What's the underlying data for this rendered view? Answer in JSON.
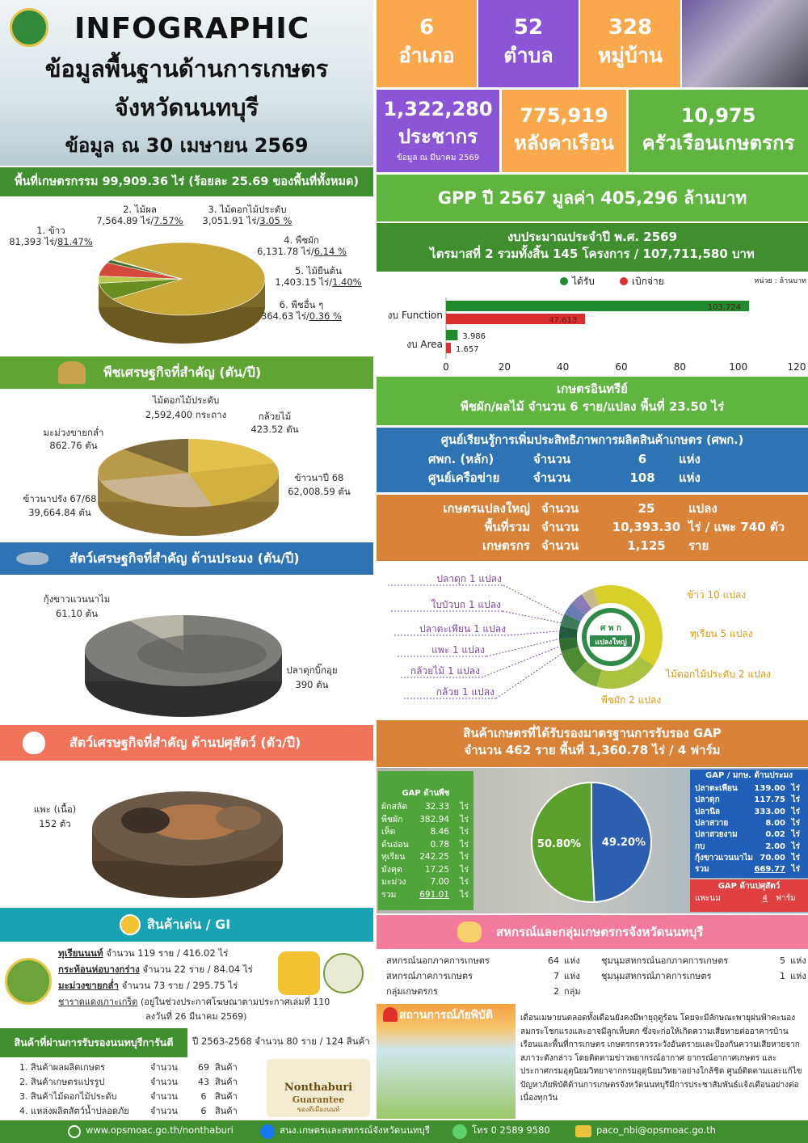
{
  "header": {
    "title": "INFOGRAPHIC",
    "subtitle_1": "ข้อมูลพื้นฐานด้านการเกษตร",
    "subtitle_2": "จังหวัดนนทบุรี",
    "date_line": "ข้อมูล ณ 30 เมษายน 2569"
  },
  "stats": {
    "amphoe": {
      "value": "6",
      "label": "อำเภอ"
    },
    "tambon": {
      "value": "52",
      "label": "ตำบล"
    },
    "village": {
      "value": "328",
      "label": "หมู่บ้าน"
    },
    "population": {
      "value": "1,322,280",
      "label": "ประชากร",
      "note": "ข้อมูล ณ มีนาคม 2569"
    },
    "households": {
      "value": "775,919",
      "label": "หลังคาเรือน"
    },
    "farm_households": {
      "value": "10,975",
      "label": "ครัวเรือนเกษตรกร"
    }
  },
  "agri_area": {
    "heading": "พื้นที่เกษตรกรรม 99,909.36 ไร่ (ร้อยละ 25.69 ของพื้นที่ทั้งหมด)",
    "items": [
      {
        "name": "1. ข้าว",
        "value": "81,393 ไร่/",
        "pct": "81.47%"
      },
      {
        "name": "2. ไม้ผล",
        "value": "7,564.89 ไร่/",
        "pct": "7.57%"
      },
      {
        "name": "3. ไม้ดอกไม้ประดับ",
        "value": "3,051.91 ไร่/",
        "pct": "3.05 %"
      },
      {
        "name": "4. พืชผัก",
        "value": "6,131.78 ไร่/",
        "pct": "6.14 %"
      },
      {
        "name": "5. ไม้ยืนต้น",
        "value": "1,403.15 ไร่/",
        "pct": "1.40%"
      },
      {
        "name": "6. พืชอื่น ๆ",
        "value": "364.63 ไร่/",
        "pct": "0.36 %"
      }
    ],
    "shares": [
      81.47,
      7.57,
      3.05,
      6.14,
      1.4,
      0.36
    ],
    "colors": [
      "#c9a93a",
      "#6b8e23",
      "#b8c84a",
      "#d24a3a",
      "#3f6e2a",
      "#e0b040"
    ]
  },
  "crops": {
    "heading": "พืชเศรษฐกิจที่สำคัญ (ตัน/ปี)",
    "items": [
      {
        "name": "ไม้ดอกไม้ประดับ",
        "value": "2,592,400 กระถาง"
      },
      {
        "name": "กล้วยไม้",
        "value": "423.52 ตัน"
      },
      {
        "name": "มะม่วงขายกล่ำ",
        "value": "862.76 ตัน"
      },
      {
        "name": "ข้าวนาปี 68",
        "value": "62,008.59 ตัน"
      },
      {
        "name": "ข้าวนาปรัง 67/68",
        "value": "39,664.84 ตัน"
      }
    ]
  },
  "fishery": {
    "heading": "สัตว์เศรษฐกิจที่สำคัญ ด้านประมง (ตัน/ปี)",
    "items": [
      {
        "name": "กุ้งขาวแวนนาไม",
        "value": "61.10 ตัน"
      },
      {
        "name": "ปลาดุกบิ๊กอุย",
        "value": "390 ตัน"
      }
    ]
  },
  "livestock": {
    "heading": "สัตว์เศรษฐกิจที่สำคัญ ด้านปศุสัตว์ (ตัว/ปี)",
    "items": [
      {
        "name": "แพะ (เนื้อ)",
        "value": "152 ตัว"
      }
    ]
  },
  "gi": {
    "heading": "สินค้าเด่น / GI",
    "items": [
      {
        "name": "ทุเรียนนนท์",
        "detail": " จำนวน  119 ราย / 416.02 ไร่"
      },
      {
        "name": "กระท้อนห่อบางกร่าง",
        "detail": " จำนวน  22 ราย / 84.04 ไร่"
      },
      {
        "name": "มะม่วงขายกล่ำ",
        "detail": " จำนวน  73 ราย / 295.75 ไร่"
      },
      {
        "name": "ชาราดแดงเกาะเกร็ด",
        "detail": " (อยู่ในช่วงประกาศโฆษณาตามประกาศเล่มที่ 110"
      },
      {
        "name": "",
        "detail": "ลงวันที่ 26 มีนาคม 2569)"
      }
    ]
  },
  "guarantee": {
    "heading": "สินค้าที่ผ่านการรับรองนนทบุรีการันตี",
    "summary": "ปี 2563-2568 จำนวน 80 ราย / 124 สินค้า",
    "items": [
      {
        "name": "1. สินค้าผลผลิตเกษตร",
        "qty": "จำนวน",
        "num": "69",
        "unit": "สินค้า"
      },
      {
        "name": "2. สินค้าเกษตรแปรรูป",
        "qty": "จำนวน",
        "num": "43",
        "unit": "สินค้า"
      },
      {
        "name": "3. สินค้าไม้ดอกไม้ประดับ",
        "qty": "จำนวน",
        "num": "6",
        "unit": "สินค้า"
      },
      {
        "name": "4. แหล่งผลิตสัตว์น้ำปลอดภัย",
        "qty": "จำนวน",
        "num": "6",
        "unit": "สินค้า"
      }
    ],
    "badge_1": "Nonthaburi",
    "badge_2": "Guarantee",
    "badge_3": "ของดีเมืองนนท์"
  },
  "gpp": "GPP ปี 2567 มูลค่า 405,296  ล้านบาท",
  "budget": {
    "line1": "งบประมาณประจำปี พ.ศ. 2569",
    "line2": "ไตรมาสที่ 2  รวมทั้งสิ้น  145 โครงการ / 107,711,580 บาท"
  },
  "chart_data": {
    "type": "bar",
    "orientation": "horizontal",
    "categories": [
      "งบ Function",
      "งบ Area"
    ],
    "series": [
      {
        "name": "ได้รับ",
        "values": [
          103.724,
          3.986
        ],
        "color": "#1f8a2e"
      },
      {
        "name": "เบิกจ่าย",
        "values": [
          47.613,
          1.657
        ],
        "color": "#d9302f"
      }
    ],
    "labels": [
      [
        "103.724",
        "3.986"
      ],
      [
        "47.613",
        "1.657"
      ]
    ],
    "xlim": [
      0,
      120
    ],
    "xticks": [
      "0",
      "20",
      "40",
      "60",
      "80",
      "100",
      "120"
    ],
    "unit_note": "หน่วย : ล้านบาท",
    "legend": "top"
  },
  "organic": {
    "title": "เกษตรอินทรีย์",
    "line": "พืชผัก/ผลไม้   จำนวน  6  ราย/แปลง   พื้นที่  23.50 ไร่"
  },
  "learning": {
    "title": "ศูนย์เรียนรู้การเพิ่มประสิทธิภาพการผลิตสินค้าเกษตร (ศพก.)",
    "rows": [
      [
        "ศพก. (หลัก)",
        "จำนวน",
        "6",
        "แห่ง"
      ],
      [
        "ศูนย์เครือข่าย",
        "จำนวน",
        "108",
        "แห่ง"
      ]
    ]
  },
  "large_plot": {
    "rows": [
      [
        "เกษตรแปลงใหญ่",
        "จำนวน",
        "25",
        "แปลง"
      ],
      [
        "พื้นที่รวม",
        "จำนวน",
        "10,393.30",
        "ไร่ / แพะ 740 ตัว"
      ],
      [
        "เกษตรกร",
        "จำนวน",
        "1,125",
        "ราย"
      ]
    ],
    "donut": {
      "values": [
        10,
        5,
        2,
        2,
        1,
        1,
        1,
        1,
        1,
        1
      ],
      "colors": [
        "#d7cf2a",
        "#a9c23f",
        "#7aa83a",
        "#4c8a34",
        "#2f6e2e",
        "#1f5a3a",
        "#3e7a5a",
        "#6b7bb5",
        "#8b7ab8",
        "#c7b98a"
      ],
      "labels_right": [
        "ข้าว  10 แปลง",
        "ทุเรียน 5 แปลง",
        "ไม้ดอกไม้ประดับ   2 แปลง",
        "พืชผัก 2 แปลง"
      ],
      "labels_left": [
        "ปลาดุก 1 แปลง",
        "ใบบัวบก 1 แปลง",
        "ปลาตะเพียน  1 แปลง",
        "แพะ  1 แปลง",
        "กล้วยไม้ 1 แปลง",
        "กล้วย 1 แปลง"
      ],
      "logo_top": "ศ พ ก",
      "logo_mid": "แปลงใหญ่"
    }
  },
  "gap": {
    "title1": "สินค้าเกษตรที่ได้รับรองมาตรฐานการรับรอง GAP",
    "title2": "จำนวน 462 ราย  พื้นที่ 1,360.78 ไร่ / 4 ฟาร์ม",
    "plant_title": "GAP ด้านพืช",
    "plant": [
      [
        "ผักสลัด",
        "32.33",
        "ไร่"
      ],
      [
        "พืชผัก",
        "382.94",
        "ไร่"
      ],
      [
        "เห็ด",
        "8.46",
        "ไร่"
      ],
      [
        "ต้นอ่อน",
        "0.78",
        "ไร่"
      ],
      [
        "ทุเรียน",
        "242.25",
        "ไร่"
      ],
      [
        "มังคุด",
        "17.25",
        "ไร่"
      ],
      [
        "มะม่วง",
        "7.00",
        "ไร่"
      ],
      [
        "รวม",
        "691.01",
        "ไร่"
      ]
    ],
    "fish_title": "GAP / มกษ. ด้านประมง",
    "fish": [
      [
        "ปลาตะเพียน",
        "139.00",
        "ไร่"
      ],
      [
        "ปลาดุก",
        "117.75",
        "ไร่"
      ],
      [
        "ปลานิล",
        "333.00",
        "ไร่"
      ],
      [
        "ปลาสวาย",
        "8.00",
        "ไร่"
      ],
      [
        "ปลาสวยงาม",
        "0.02",
        "ไร่"
      ],
      [
        "กบ",
        "2.00",
        "ไร่"
      ],
      [
        "กุ้งขาวแวนนาไม",
        "70.00",
        "ไร่"
      ],
      [
        "รวม",
        "669.77",
        "ไร่"
      ]
    ],
    "live_title": "GAP ด้านปศุสัตว์",
    "live": [
      "แพะนม",
      "4",
      "ฟาร์ม"
    ],
    "pie": {
      "values": [
        50.8,
        49.2
      ],
      "labels": [
        "50.80%",
        "49.20%"
      ],
      "colors": [
        "#5aa02c",
        "#2d5fb0"
      ]
    }
  },
  "coop": {
    "title": "สหกรณ์และกลุ่มเกษตรกรจังหวัดนนทบุรี",
    "rows": [
      [
        "สหกรณ์นอกภาคการเกษตร",
        "64",
        "แห่ง",
        "ชุมนุมสหกรณ์นอกภาคการเกษตร",
        "5",
        "แห่ง"
      ],
      [
        "สหกรณ์ภาคการเกษตร",
        "7",
        "แห่ง",
        "ชุมนุมสหกรณ์ภาคการเกษตร",
        "1",
        "แห่ง"
      ],
      [
        "กลุ่มเกษตรกร",
        "2",
        "กลุ่ม",
        "",
        "",
        ""
      ]
    ]
  },
  "disaster": {
    "title": "สถานการณ์ภัยพิบัติ",
    "text": "เดือนเมษายนตลอดทั้งเดือนยังคงมีพายุฤดูร้อน โดยจะมีลักษณะพายุฝนฟ้าคะนอง ลมกระโชกแรงและอาจมีลูกเห็บตก ซึ่งจะก่อให้เกิดความเสียหายต่ออาคารบ้านเรือนและพื้นที่การเกษตร เกษตรกรควรระวังอันตรายและป้องกันความเสียหายจากสภาวะดังกล่าว โดยติดตามข่าวพยากรณ์อากาศ ยากรณ์อากาศเกษตร และประกาศกรมอุตุนิยมวิทยาจากกรมอุตุนิยมวิทยาอย่างใกล้ชิด ศูนย์ติดตามและแก้ไขปัญหาภัยพิบัติด้านการเกษตรจังหวัดนนทบุรีมีการประชาสัมพันธ์แจ้งเตือนอย่างต่อเนื่องทุกวัน"
  },
  "footer": {
    "web": "www.opsmoac.go.th/nonthaburi",
    "fb": "สนง.เกษตรและสหกรณ์จังหวัดนนทบุรี",
    "tel": "โทร 0 2589 9580",
    "mail": "paco_nbi@opsmoac.go.th"
  }
}
